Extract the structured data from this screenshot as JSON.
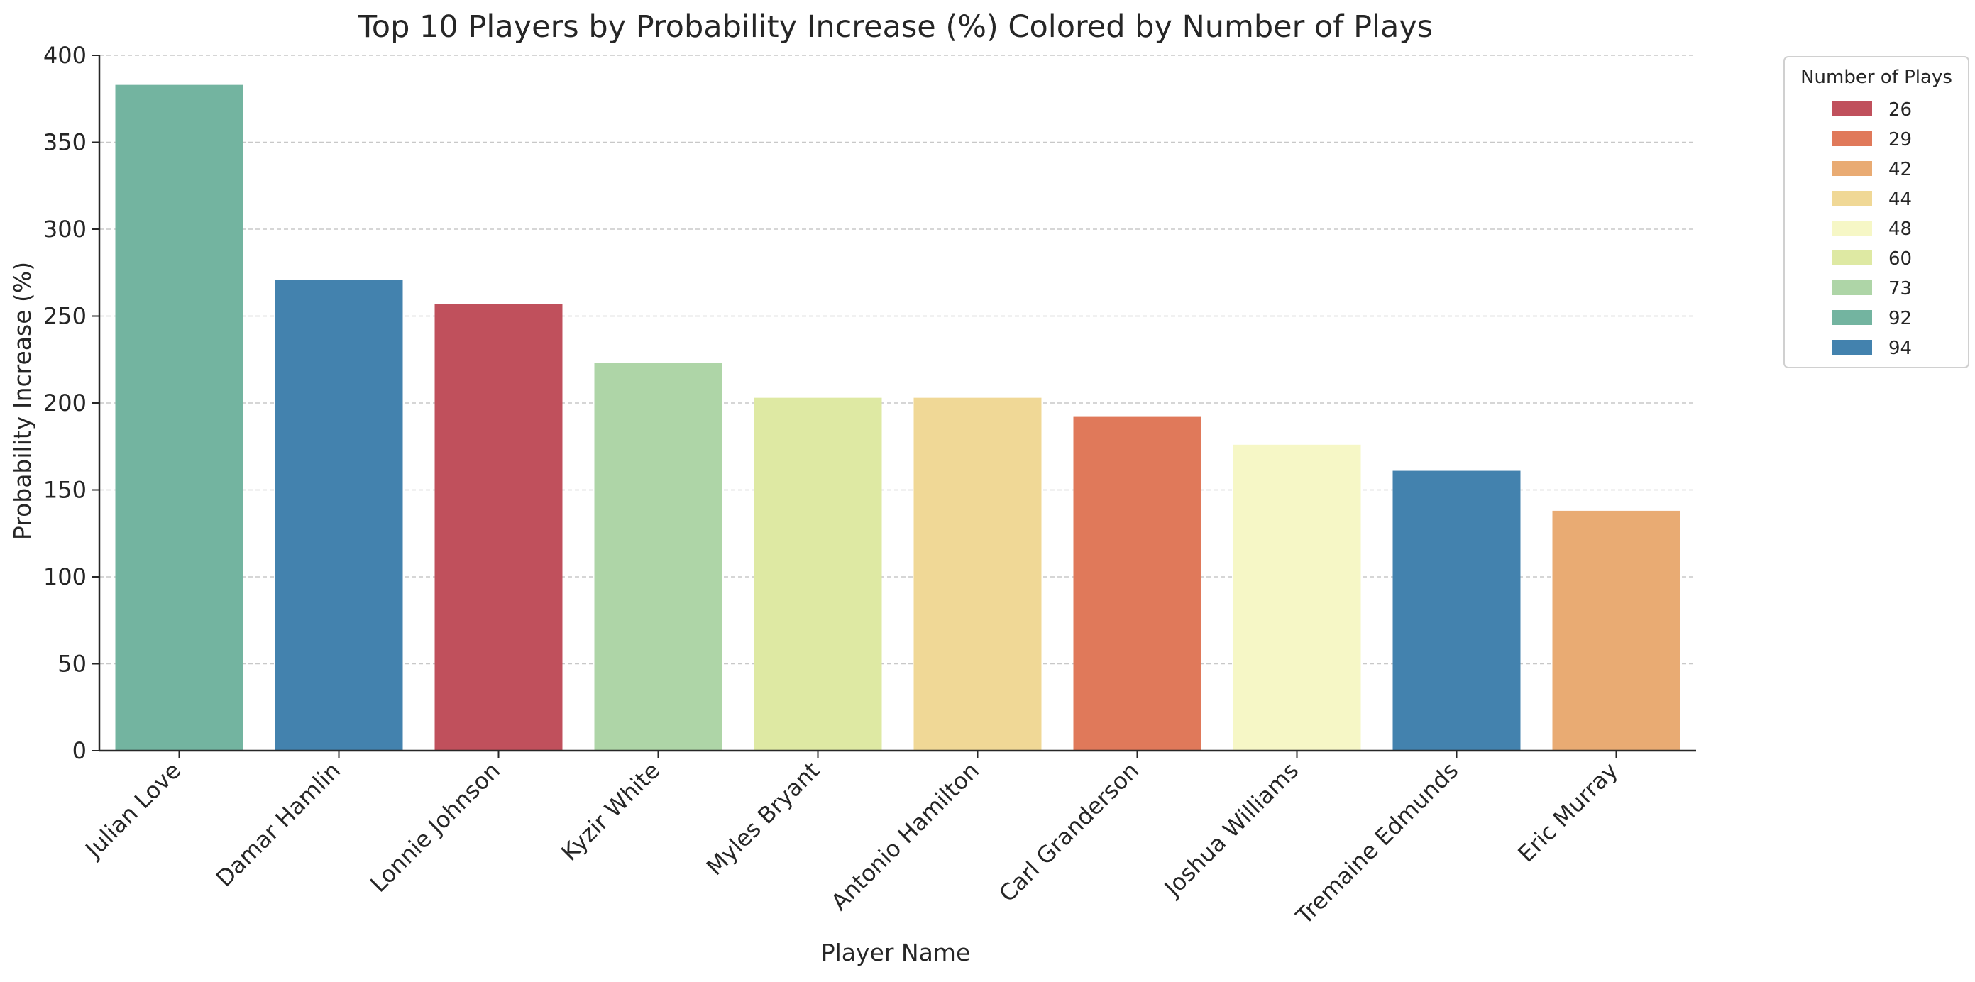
{
  "chart_data": {
    "type": "bar",
    "title": "Top 10 Players by Probability Increase (%) Colored by Number of Plays",
    "xlabel": "Player Name",
    "ylabel": "Probability Increase (%)",
    "ylim": [
      0,
      400
    ],
    "yticks": [
      0,
      50,
      100,
      150,
      200,
      250,
      300,
      350,
      400
    ],
    "grid": "y-dashed",
    "categories": [
      "Julian Love",
      "Damar Hamlin",
      "Lonnie Johnson",
      "Kyzir White",
      "Myles Bryant",
      "Antonio Hamilton",
      "Carl Granderson",
      "Joshua Williams",
      "Tremaine Edmunds",
      "Eric Murray"
    ],
    "values": [
      383,
      271,
      257,
      223,
      203,
      203,
      192,
      176,
      161,
      138
    ],
    "plays": [
      92,
      94,
      26,
      73,
      60,
      44,
      29,
      48,
      94,
      42
    ],
    "legend": {
      "title": "Number of Plays",
      "position": "outside-top-right",
      "entries": [
        {
          "label": "26",
          "color": "#c0505c"
        },
        {
          "label": "29",
          "color": "#e0795a"
        },
        {
          "label": "42",
          "color": "#e9ab73"
        },
        {
          "label": "44",
          "color": "#f0d896"
        },
        {
          "label": "48",
          "color": "#f6f7c6"
        },
        {
          "label": "60",
          "color": "#dee9a3"
        },
        {
          "label": "73",
          "color": "#aed5a7"
        },
        {
          "label": "92",
          "color": "#73b4a0"
        },
        {
          "label": "94",
          "color": "#4382ae"
        }
      ]
    }
  }
}
